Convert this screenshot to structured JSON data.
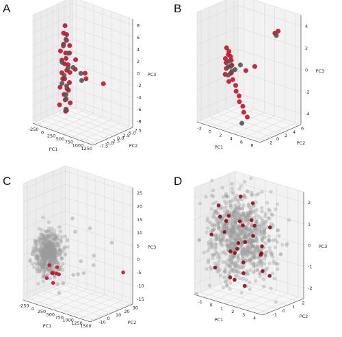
{
  "colors": {
    "red": "#c0152c",
    "dark": "#555555",
    "grey": "#9a9a9a",
    "dark_red": "#8b0d1c"
  },
  "chart_data": [
    {
      "panel": "A",
      "type": "scatter",
      "xlabel": "PC1",
      "ylabel": "PC2",
      "zlabel": "PC3",
      "xticks": [
        "-250",
        "0",
        "250",
        "500",
        "750",
        "1000",
        "1250"
      ],
      "yticks": [
        "-7.5",
        "-5.0",
        "-2.5",
        "0.0",
        "2.5",
        "5.0",
        "7.5"
      ],
      "zticks": [
        "-8",
        "-6",
        "-4",
        "-2",
        "0",
        "2",
        "4",
        "6",
        "8"
      ],
      "xlim": [
        -350,
        1350
      ],
      "ylim": [
        -8.5,
        8.5
      ],
      "zlim": [
        -9,
        9
      ],
      "series": [
        {
          "color": "red",
          "points": [
            [
              0,
              0,
              6.5
            ],
            [
              25,
              -1,
              5.5
            ],
            [
              -20,
              1,
              4.8
            ],
            [
              10,
              0.5,
              4
            ],
            [
              -10,
              -0.5,
              3.5
            ],
            [
              30,
              1.5,
              3
            ],
            [
              -30,
              -1.5,
              2.5
            ],
            [
              15,
              0,
              2
            ],
            [
              -5,
              2,
              1.6
            ],
            [
              40,
              -2,
              1.2
            ],
            [
              -40,
              1,
              0.8
            ],
            [
              20,
              -0.5,
              0.3
            ],
            [
              -15,
              1.5,
              -0.3
            ],
            [
              50,
              0,
              -0.8
            ],
            [
              -25,
              -1,
              -1.2
            ],
            [
              5,
              2,
              -1.6
            ],
            [
              35,
              -1.5,
              -2
            ],
            [
              -45,
              0.5,
              -2.5
            ],
            [
              60,
              1,
              -3
            ],
            [
              -10,
              -2,
              -3.4
            ],
            [
              25,
              0.5,
              -4
            ],
            [
              0,
              1.5,
              -4.5
            ],
            [
              -30,
              0,
              -5
            ],
            [
              70,
              -1,
              -5.5
            ],
            [
              10,
              -2.5,
              -6.2
            ],
            [
              -20,
              2.5,
              -6.8
            ],
            [
              40,
              0,
              -7.5
            ],
            [
              -50,
              1,
              -8
            ],
            [
              300,
              0,
              1.5
            ],
            [
              420,
              -2,
              0.5
            ],
            [
              500,
              1,
              -0.5
            ],
            [
              560,
              0.5,
              -1.2
            ],
            [
              1150,
              -1,
              -0.5
            ]
          ]
        },
        {
          "color": "dark",
          "points": [
            [
              5,
              0.3,
              4.2
            ],
            [
              -15,
              -0.5,
              3.2
            ],
            [
              20,
              1,
              1.8
            ],
            [
              -5,
              -1.2,
              0.6
            ],
            [
              30,
              0.8,
              -0.6
            ],
            [
              -25,
              0,
              -1.8
            ],
            [
              12,
              -1.5,
              -2.8
            ],
            [
              -35,
              1.2,
              -3.8
            ],
            [
              45,
              -0.3,
              -4.8
            ],
            [
              -8,
              0.6,
              -5.8
            ],
            [
              260,
              -0.5,
              0.2
            ],
            [
              380,
              1,
              -0.8
            ],
            [
              470,
              0,
              -1.6
            ],
            [
              90,
              -1,
              -7
            ]
          ]
        }
      ]
    },
    {
      "panel": "B",
      "type": "scatter",
      "xlabel": "PC1",
      "ylabel": "PC2",
      "zlabel": "PC3",
      "xticks": [
        "-2",
        "0",
        "2",
        "4",
        "6",
        "8"
      ],
      "yticks": [
        "-2",
        "0",
        "2",
        "4",
        "6"
      ],
      "zticks": [
        "-4",
        "-2",
        "0",
        "2",
        "4"
      ],
      "xlim": [
        -3,
        9
      ],
      "ylim": [
        -3,
        7
      ],
      "zlim": [
        -5,
        5
      ],
      "series": [
        {
          "color": "red",
          "points": [
            [
              -0.5,
              1,
              1.5
            ],
            [
              -0.2,
              1.2,
              1.2
            ],
            [
              0,
              0.8,
              1
            ],
            [
              0.2,
              1.1,
              0.8
            ],
            [
              -0.4,
              0.6,
              0.6
            ],
            [
              0.4,
              1,
              0.5
            ],
            [
              -0.1,
              0.4,
              0.3
            ],
            [
              0.6,
              0.9,
              0.1
            ],
            [
              0.1,
              1.3,
              -0.1
            ],
            [
              -0.3,
              0.7,
              -0.3
            ],
            [
              0.8,
              0.5,
              -0.5
            ],
            [
              0.3,
              1,
              -0.7
            ],
            [
              -0.6,
              0.8,
              -0.9
            ],
            [
              1,
              0.6,
              -1.1
            ],
            [
              0.5,
              0.3,
              -1.3
            ],
            [
              1.4,
              0.8,
              -1.6
            ],
            [
              1.8,
              0.4,
              -2
            ],
            [
              2.2,
              0.6,
              -2.4
            ],
            [
              2.6,
              0.2,
              -2.8
            ],
            [
              3,
              0.5,
              -3.2
            ],
            [
              3.5,
              0.1,
              -3.6
            ],
            [
              4,
              0.3,
              -4
            ],
            [
              5.2,
              5.5,
              3
            ],
            [
              5.6,
              5.8,
              3.2
            ],
            [
              4.5,
              1.5,
              0.5
            ],
            [
              3.2,
              1,
              0
            ]
          ]
        },
        {
          "color": "dark",
          "points": [
            [
              0.1,
              0.9,
              0.4
            ],
            [
              0.4,
              0.7,
              0
            ],
            [
              -0.2,
              1,
              -0.2
            ],
            [
              0.7,
              0.8,
              -0.4
            ],
            [
              0.2,
              0.5,
              -0.8
            ],
            [
              1.2,
              0.9,
              -0.2
            ],
            [
              2,
              1.2,
              0.3
            ],
            [
              5.4,
              5.6,
              2.8
            ],
            [
              3.6,
              -0.5,
              -4.5
            ]
          ]
        }
      ]
    },
    {
      "panel": "C",
      "type": "scatter",
      "xlabel": "PC1",
      "ylabel": "PC2",
      "zlabel": "PC3",
      "xticks": [
        "-250",
        "0",
        "250",
        "500",
        "750",
        "1000",
        "1250",
        "1500"
      ],
      "yticks": [
        "-10",
        "0",
        "10",
        "20",
        "30"
      ],
      "zticks": [
        "-15",
        "-10",
        "-5",
        "0",
        "5",
        "10",
        "15",
        "20",
        "25"
      ],
      "xlim": [
        -350,
        1550
      ],
      "ylim": [
        -15,
        35
      ],
      "zlim": [
        -17,
        27
      ],
      "series": [
        {
          "color": "grey",
          "cluster": {
            "n": 500,
            "center": [
              0,
              0,
              0
            ],
            "spread": [
              110,
              6,
              4
            ]
          }
        },
        {
          "color": "grey",
          "points": [
            [
              300,
              10,
              5
            ],
            [
              400,
              15,
              8
            ],
            [
              600,
              -5,
              3
            ],
            [
              700,
              20,
              10
            ],
            [
              800,
              5,
              0
            ],
            [
              900,
              -8,
              -3
            ],
            [
              1000,
              12,
              2
            ],
            [
              1200,
              25,
              6
            ],
            [
              500,
              -10,
              -8
            ],
            [
              350,
              3,
              -10
            ],
            [
              650,
              8,
              -6
            ],
            [
              1100,
              -4,
              -2
            ],
            [
              250,
              18,
              12
            ],
            [
              450,
              -6,
              -12
            ],
            [
              750,
              22,
              -4
            ]
          ]
        },
        {
          "color": "red",
          "points": [
            [
              150,
              -5,
              -3
            ],
            [
              200,
              -3,
              -6
            ],
            [
              100,
              -6,
              -8
            ],
            [
              250,
              0,
              -4
            ],
            [
              300,
              -8,
              -5
            ],
            [
              180,
              2,
              -7
            ],
            [
              350,
              -2,
              -6
            ],
            [
              280,
              -6,
              -9
            ],
            [
              1400,
              30,
              -5
            ]
          ]
        }
      ]
    },
    {
      "panel": "D",
      "type": "scatter",
      "xlabel": "PC1",
      "ylabel": "PC2",
      "zlabel": "PC3",
      "xticks": [
        "-1",
        "0",
        "1",
        "2",
        "3",
        "4"
      ],
      "yticks": [
        "-1",
        "0",
        "1",
        "2"
      ],
      "zticks": [
        "-2",
        "-1",
        "0",
        "1",
        "2"
      ],
      "xlim": [
        -1.8,
        4.5
      ],
      "ylim": [
        -1.6,
        2.6
      ],
      "zlim": [
        -2.5,
        2.5
      ],
      "series": [
        {
          "color": "grey",
          "cluster": {
            "n": 900,
            "center": [
              0.6,
              0.4,
              0.2
            ],
            "spread": [
              1.3,
              0.9,
              1.0
            ]
          }
        },
        {
          "color": "dark_red",
          "points": [
            [
              -1,
              0,
              1.5
            ],
            [
              -0.5,
              0.5,
              1
            ],
            [
              0,
              -0.5,
              0.5
            ],
            [
              0.5,
              0,
              -0.5
            ],
            [
              1,
              0.5,
              0
            ],
            [
              1.5,
              -0.3,
              1
            ],
            [
              2,
              0.2,
              0.5
            ],
            [
              -0.8,
              1,
              -0.8
            ],
            [
              0.2,
              1.2,
              -1.2
            ],
            [
              1.2,
              -0.8,
              -1.5
            ],
            [
              2.5,
              0.5,
              -0.3
            ],
            [
              3,
              0,
              0.2
            ],
            [
              3.5,
              -0.5,
              -0.8
            ],
            [
              -1.2,
              -0.5,
              0.2
            ],
            [
              0.8,
              1.5,
              1.6
            ],
            [
              1.8,
              1.2,
              -0.6
            ],
            [
              2.2,
              -1,
              -1
            ],
            [
              -0.2,
              0.3,
              -1.8
            ],
            [
              0.6,
              -1,
              1.2
            ],
            [
              1.6,
              0.8,
              0.8
            ],
            [
              2.8,
              1,
              -1.4
            ],
            [
              -0.6,
              -0.8,
              -1.2
            ],
            [
              0.4,
              0.7,
              2
            ],
            [
              1.4,
              0,
              -1.9
            ],
            [
              2.4,
              -0.4,
              1.4
            ],
            [
              -1.4,
              0.6,
              0.8
            ],
            [
              3.2,
              0.6,
              1
            ],
            [
              0.9,
              -0.2,
              -0.2
            ],
            [
              1.9,
              -1.2,
              0.4
            ],
            [
              -0.3,
              1.4,
              0.6
            ]
          ]
        }
      ]
    }
  ]
}
